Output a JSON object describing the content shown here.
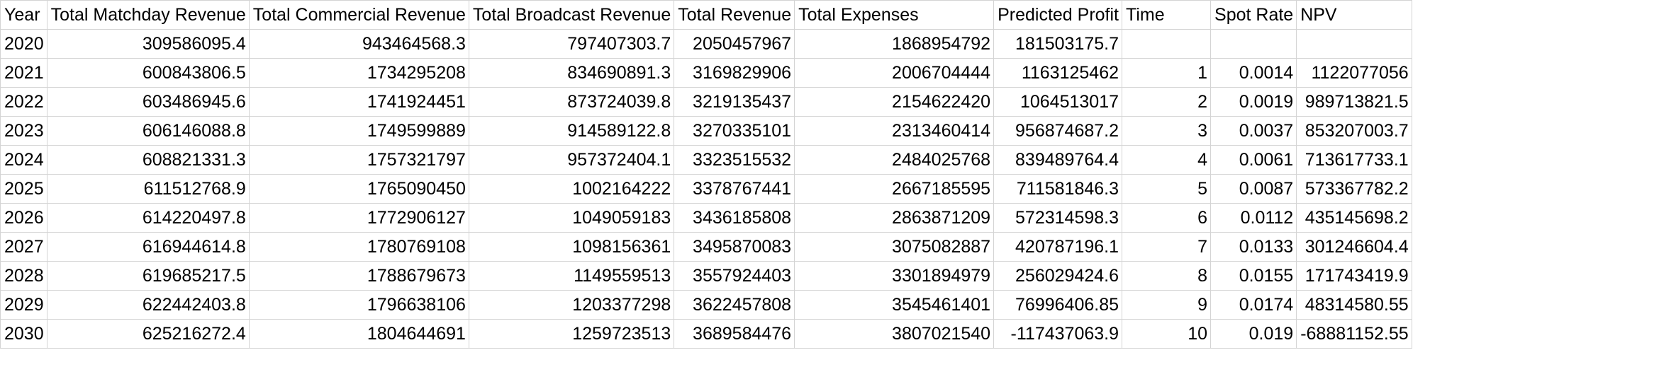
{
  "sheet": {
    "headers": [
      "Year",
      "Total Matchday Revenue",
      "Total Commercial Revenue",
      "Total Broadcast Revenue",
      "Total Revenue",
      "Total Expenses",
      "Predicted Profit",
      "Time",
      "Spot Rate",
      "NPV"
    ],
    "rows": [
      [
        "2020",
        "309586095.4",
        "943464568.3",
        "797407303.7",
        "2050457967",
        "1868954792",
        "181503175.7",
        "",
        "",
        ""
      ],
      [
        "2021",
        "600843806.5",
        "1734295208",
        "834690891.3",
        "3169829906",
        "2006704444",
        "1163125462",
        "1",
        "0.0014",
        "1122077056"
      ],
      [
        "2022",
        "603486945.6",
        "1741924451",
        "873724039.8",
        "3219135437",
        "2154622420",
        "1064513017",
        "2",
        "0.0019",
        "989713821.5"
      ],
      [
        "2023",
        "606146088.8",
        "1749599889",
        "914589122.8",
        "3270335101",
        "2313460414",
        "956874687.2",
        "3",
        "0.0037",
        "853207003.7"
      ],
      [
        "2024",
        "608821331.3",
        "1757321797",
        "957372404.1",
        "3323515532",
        "2484025768",
        "839489764.4",
        "4",
        "0.0061",
        "713617733.1"
      ],
      [
        "2025",
        "611512768.9",
        "1765090450",
        "1002164222",
        "3378767441",
        "2667185595",
        "711581846.3",
        "5",
        "0.0087",
        "573367782.2"
      ],
      [
        "2026",
        "614220497.8",
        "1772906127",
        "1049059183",
        "3436185808",
        "2863871209",
        "572314598.3",
        "6",
        "0.0112",
        "435145698.2"
      ],
      [
        "2027",
        "616944614.8",
        "1780769108",
        "1098156361",
        "3495870083",
        "3075082887",
        "420787196.1",
        "7",
        "0.0133",
        "301246604.4"
      ],
      [
        "2028",
        "619685217.5",
        "1788679673",
        "1149559513",
        "3557924403",
        "3301894979",
        "256029424.6",
        "8",
        "0.0155",
        "171743419.9"
      ],
      [
        "2029",
        "622442403.8",
        "1796638106",
        "1203377298",
        "3622457808",
        "3545461401",
        "76996406.85",
        "9",
        "0.0174",
        "48314580.55"
      ],
      [
        "2030",
        "625216272.4",
        "1804644691",
        "1259723513",
        "3689584476",
        "3807021540",
        "-117437063.9",
        "10",
        "0.019",
        "-68881152.55"
      ]
    ]
  }
}
